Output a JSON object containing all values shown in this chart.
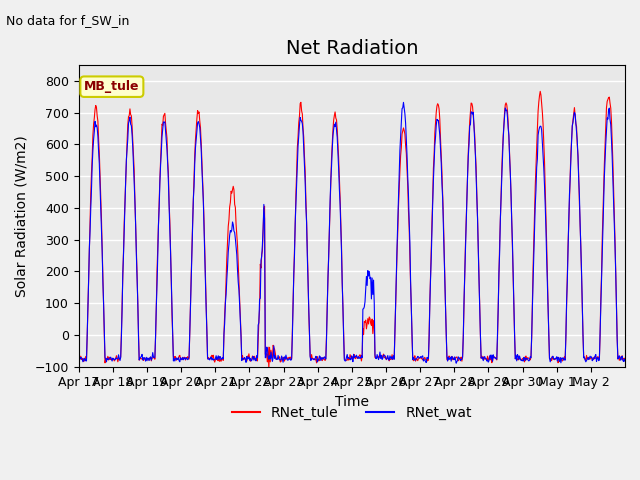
{
  "title": "Net Radiation",
  "subtitle": "No data for f_SW_in",
  "ylabel": "Solar Radiation (W/m2)",
  "xlabel": "Time",
  "ylim": [
    -100,
    850
  ],
  "yticks": [
    -100,
    0,
    100,
    200,
    300,
    400,
    500,
    600,
    700,
    800
  ],
  "xtick_labels": [
    "Apr 17",
    "Apr 18",
    "Apr 19",
    "Apr 20",
    "Apr 21",
    "Apr 22",
    "Apr 23",
    "Apr 24",
    "Apr 25",
    "Apr 26",
    "Apr 27",
    "Apr 28",
    "Apr 29",
    "Apr 30",
    "May 1",
    "May 2"
  ],
  "legend_label_box": "MB_tule",
  "legend_entries": [
    "RNet_tule",
    "RNet_wat"
  ],
  "legend_colors": [
    "#ff0000",
    "#0000ff"
  ],
  "bg_color": "#e8e8e8",
  "plot_bg_color": "#e8e8e8",
  "grid_color": "#ffffff",
  "title_fontsize": 14,
  "label_fontsize": 10,
  "tick_fontsize": 9
}
